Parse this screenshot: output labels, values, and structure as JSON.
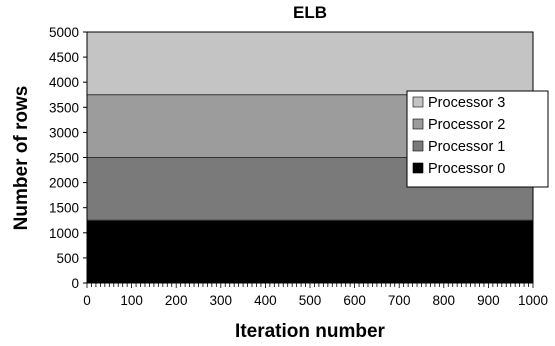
{
  "chart_data": {
    "type": "area",
    "stacked": true,
    "title": "ELB",
    "xlabel": "Iteration number",
    "ylabel": "Number of rows",
    "xlim": [
      0,
      1000
    ],
    "ylim": [
      0,
      5000
    ],
    "x_ticks": [
      "0",
      "100",
      "200",
      "300",
      "400",
      "500",
      "600",
      "700",
      "800",
      "900",
      "1000"
    ],
    "y_ticks": [
      "0",
      "500",
      "1000",
      "1500",
      "2000",
      "2500",
      "3000",
      "3500",
      "4000",
      "4500",
      "5000"
    ],
    "x": [
      0,
      1000
    ],
    "series": [
      {
        "name": "Processor 0",
        "color": "#000000",
        "values": [
          1250,
          1250
        ]
      },
      {
        "name": "Processor 1",
        "color": "#7a7a7a",
        "values": [
          1250,
          1250
        ]
      },
      {
        "name": "Processor 2",
        "color": "#9c9c9c",
        "values": [
          1250,
          1250
        ]
      },
      {
        "name": "Processor 3",
        "color": "#c4c4c4",
        "values": [
          1250,
          1250
        ]
      }
    ],
    "legend_order": [
      "Processor 3",
      "Processor 2",
      "Processor 1",
      "Processor 0"
    ],
    "legend_position": "right",
    "grid": false
  }
}
